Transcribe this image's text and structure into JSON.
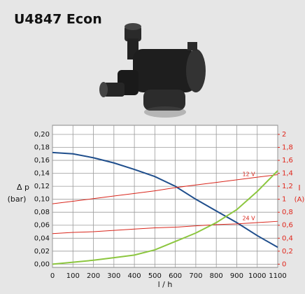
{
  "chart_data": {
    "type": "line",
    "title": "U4847 Econ",
    "y_label": "Δ p",
    "y_unit": "(bar)",
    "y2_label": "I",
    "y2_unit": "(A)",
    "x_label": "l / h",
    "x": [
      0,
      100,
      200,
      300,
      400,
      500,
      600,
      700,
      800,
      900,
      1000,
      1100
    ],
    "xlim": [
      0,
      1100
    ],
    "xticks": [
      0,
      100,
      200,
      300,
      400,
      500,
      600,
      700,
      800,
      900,
      1000,
      1100
    ],
    "ylim": [
      -0.005,
      0.214
    ],
    "yticks": [
      {
        "value": 0,
        "label": "0,00"
      },
      {
        "value": 0.02,
        "label": "0,02"
      },
      {
        "value": 0.04,
        "label": "0,04"
      },
      {
        "value": 0.06,
        "label": "0,06"
      },
      {
        "value": 0.08,
        "label": "0,08"
      },
      {
        "value": 0.1,
        "label": "0,10"
      },
      {
        "value": 0.12,
        "label": "0,12"
      },
      {
        "value": 0.14,
        "label": "0,14"
      },
      {
        "value": 0.16,
        "label": "0,16"
      },
      {
        "value": 0.18,
        "label": "0,18"
      },
      {
        "value": 0.2,
        "label": "0,20"
      }
    ],
    "y2lim": [
      -0.05,
      2.14
    ],
    "y2ticks": [
      0,
      {
        "value": 0.2,
        "label": "0,2"
      },
      {
        "value": 0.4,
        "label": "0,4"
      },
      {
        "value": 0.6,
        "label": "0,6"
      },
      {
        "value": 0.8,
        "label": "0,8"
      },
      1,
      {
        "value": 1.2,
        "label": "1,2"
      },
      {
        "value": 1.4,
        "label": "1,4"
      },
      {
        "value": 1.6,
        "label": "1,6"
      },
      {
        "value": 1.8,
        "label": "1,8"
      },
      2
    ],
    "grid": true,
    "y2_color": "#e0261b",
    "series": [
      {
        "color": "#1f4e8c",
        "values": [
          0.172,
          0.17,
          0.164,
          0.156,
          0.146,
          0.135,
          0.12,
          0.1,
          0.082,
          0.064,
          0.044,
          0.026
        ]
      },
      {
        "name": "12 V",
        "color": "#d9261c",
        "axis": "y2",
        "values": [
          0.93,
          0.97,
          1.01,
          1.05,
          1.09,
          1.13,
          1.18,
          1.22,
          1.26,
          1.3,
          1.34,
          1.38
        ]
      },
      {
        "name": "24 V",
        "color": "#d9261c",
        "axis": "y2",
        "values": [
          0.47,
          0.49,
          0.5,
          0.52,
          0.54,
          0.56,
          0.57,
          0.59,
          0.61,
          0.62,
          0.64,
          0.66
        ]
      },
      {
        "color": "#8cc63f",
        "axis": "y2",
        "values": [
          0,
          0.03,
          0.06,
          0.1,
          0.14,
          0.22,
          0.35,
          0.48,
          0.64,
          0.84,
          1.12,
          1.44
        ]
      }
    ]
  }
}
